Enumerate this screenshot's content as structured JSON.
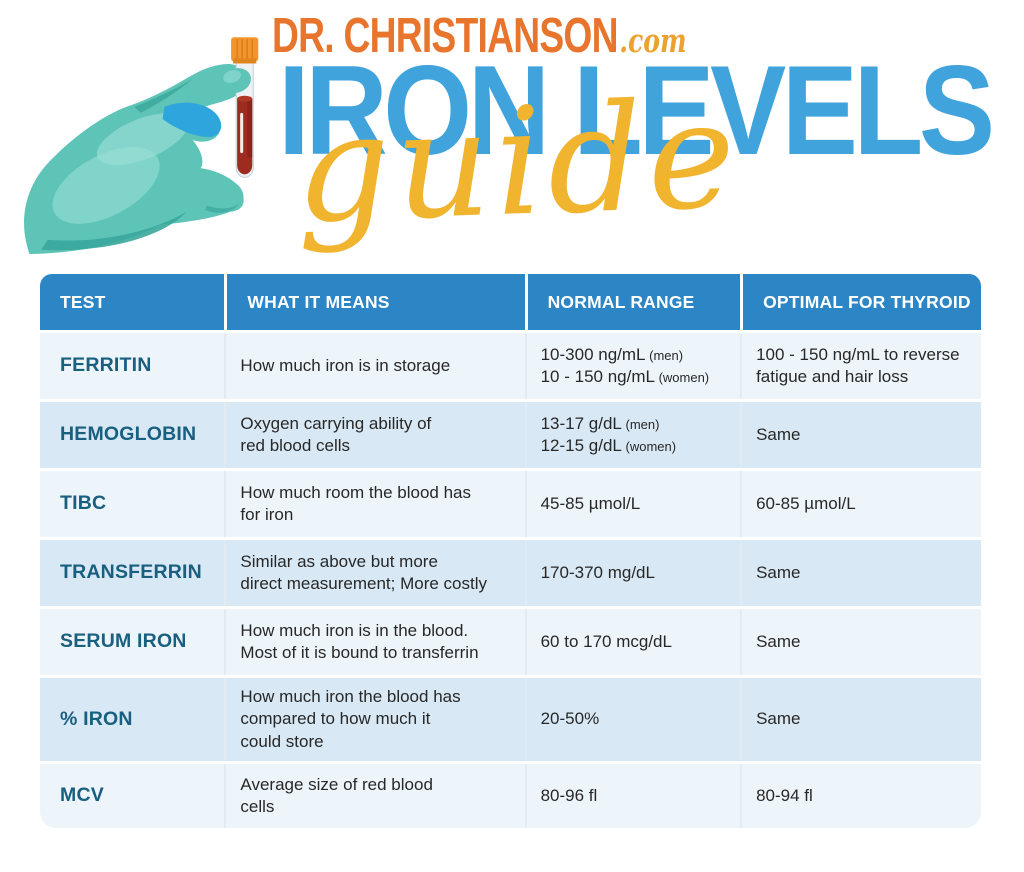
{
  "brand": {
    "name": "DR. CHRISTIANSON",
    "tld": ".com",
    "title": "IRON LEVELS",
    "script_title": "guide"
  },
  "illustration": {
    "name": "hand-holding-blood-test-tube",
    "glove_color": "#5EC4B8",
    "cap_color": "#F2952D",
    "blood_color": "#9E2B1F"
  },
  "colors": {
    "brand_orange": "#E8752E",
    "brand_gold": "#F0B42F",
    "title_blue": "#41A3DC",
    "table_header_blue": "#2C86C5",
    "test_name_teal": "#185F80",
    "row_light": "#EDF4FA",
    "row_alt": "#D8E8F4"
  },
  "table": {
    "columns": [
      "TEST",
      "WHAT IT MEANS",
      "NORMAL RANGE",
      "OPTIMAL FOR THYROID"
    ],
    "rows": [
      {
        "test": "FERRITIN",
        "meaning": "How much iron is in storage",
        "normal_range": [
          {
            "value": "10-300 ng/mL",
            "note": "(men)"
          },
          {
            "value": "10 - 150 ng/mL",
            "note": "(women)"
          }
        ],
        "optimal": "100 - 150 ng/mL to reverse\nfatigue and hair loss"
      },
      {
        "test": "HEMOGLOBIN",
        "meaning": "Oxygen carrying ability of\nred blood cells",
        "normal_range": [
          {
            "value": "13-17 g/dL",
            "note": "(men)"
          },
          {
            "value": "12-15 g/dL",
            "note": "(women)"
          }
        ],
        "optimal": "Same"
      },
      {
        "test": "TIBC",
        "meaning": "How much room the blood has\nfor iron",
        "normal_range": [
          {
            "value": "45-85 µmol/L",
            "note": ""
          }
        ],
        "optimal": "60-85 µmol/L"
      },
      {
        "test": "TRANSFERRIN",
        "meaning": "Similar as above but more\ndirect measurement; More costly",
        "normal_range": [
          {
            "value": "170-370 mg/dL",
            "note": ""
          }
        ],
        "optimal": "Same"
      },
      {
        "test": "SERUM IRON",
        "meaning": "How much iron is in the blood.\nMost of it is bound to transferrin",
        "normal_range": [
          {
            "value": "60 to 170 mcg/dL",
            "note": ""
          }
        ],
        "optimal": "Same"
      },
      {
        "test": "% IRON",
        "meaning": "How much iron the blood has\ncompared to how much it\ncould store",
        "normal_range": [
          {
            "value": "20-50%",
            "note": ""
          }
        ],
        "optimal": "Same"
      },
      {
        "test": "MCV",
        "meaning": "Average size of red blood\ncells",
        "normal_range": [
          {
            "value": "80-96 fl",
            "note": ""
          }
        ],
        "optimal": "80-94 fl"
      }
    ]
  }
}
